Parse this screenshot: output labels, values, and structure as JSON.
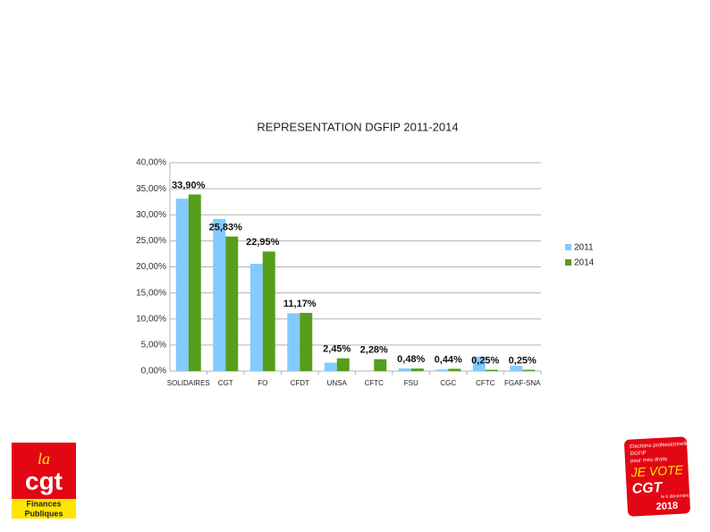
{
  "chart_data": {
    "type": "bar",
    "title": "REPRESENTATION DGFIP 2011-2014",
    "categories": [
      "SOLIDAIRES",
      "CGT",
      "FO",
      "CFDT",
      "UNSA",
      "CFTC",
      "FSU",
      "CGC",
      "CFTC",
      "FGAF-SNA"
    ],
    "series": [
      {
        "name": "2011",
        "color": "#83caff",
        "values": [
          33.1,
          29.2,
          20.6,
          11.1,
          1.6,
          0,
          0.5,
          0.3,
          2.8,
          1.0
        ]
      },
      {
        "name": "2014",
        "color": "#579d1c",
        "values": [
          33.9,
          25.83,
          22.95,
          11.17,
          2.45,
          2.28,
          0.48,
          0.44,
          0.25,
          0.25
        ],
        "value_labels": [
          "33,90%",
          "25,83%",
          "22,95%",
          "11,17%",
          "2,45%",
          "2,28%",
          "0,48%",
          "0,44%",
          "0,25%",
          "0,25%"
        ]
      }
    ],
    "ylim": [
      0,
      40
    ],
    "yticks": [
      {
        "value": 0,
        "label": "0,00%"
      },
      {
        "value": 5,
        "label": "5,00%"
      },
      {
        "value": 10,
        "label": "10,00%"
      },
      {
        "value": 15,
        "label": "15,00%"
      },
      {
        "value": 20,
        "label": "20,00%"
      },
      {
        "value": 25,
        "label": "25,00%"
      },
      {
        "value": 30,
        "label": "30,00%"
      },
      {
        "value": 35,
        "label": "35,00%"
      },
      {
        "value": 40,
        "label": "40,00%"
      }
    ],
    "grid": true,
    "legend": "right"
  },
  "logos": {
    "left": {
      "top": "la",
      "main": "cgt",
      "sub1": "Finances",
      "sub2": "Publiques"
    },
    "right": {
      "line1": "Elections professionnelles",
      "line2": "DGFiP",
      "line3": "pour mes droits",
      "main1": "JE VOTE",
      "main2": "CGT",
      "date": "le 6 décembre",
      "year": "2018"
    }
  }
}
